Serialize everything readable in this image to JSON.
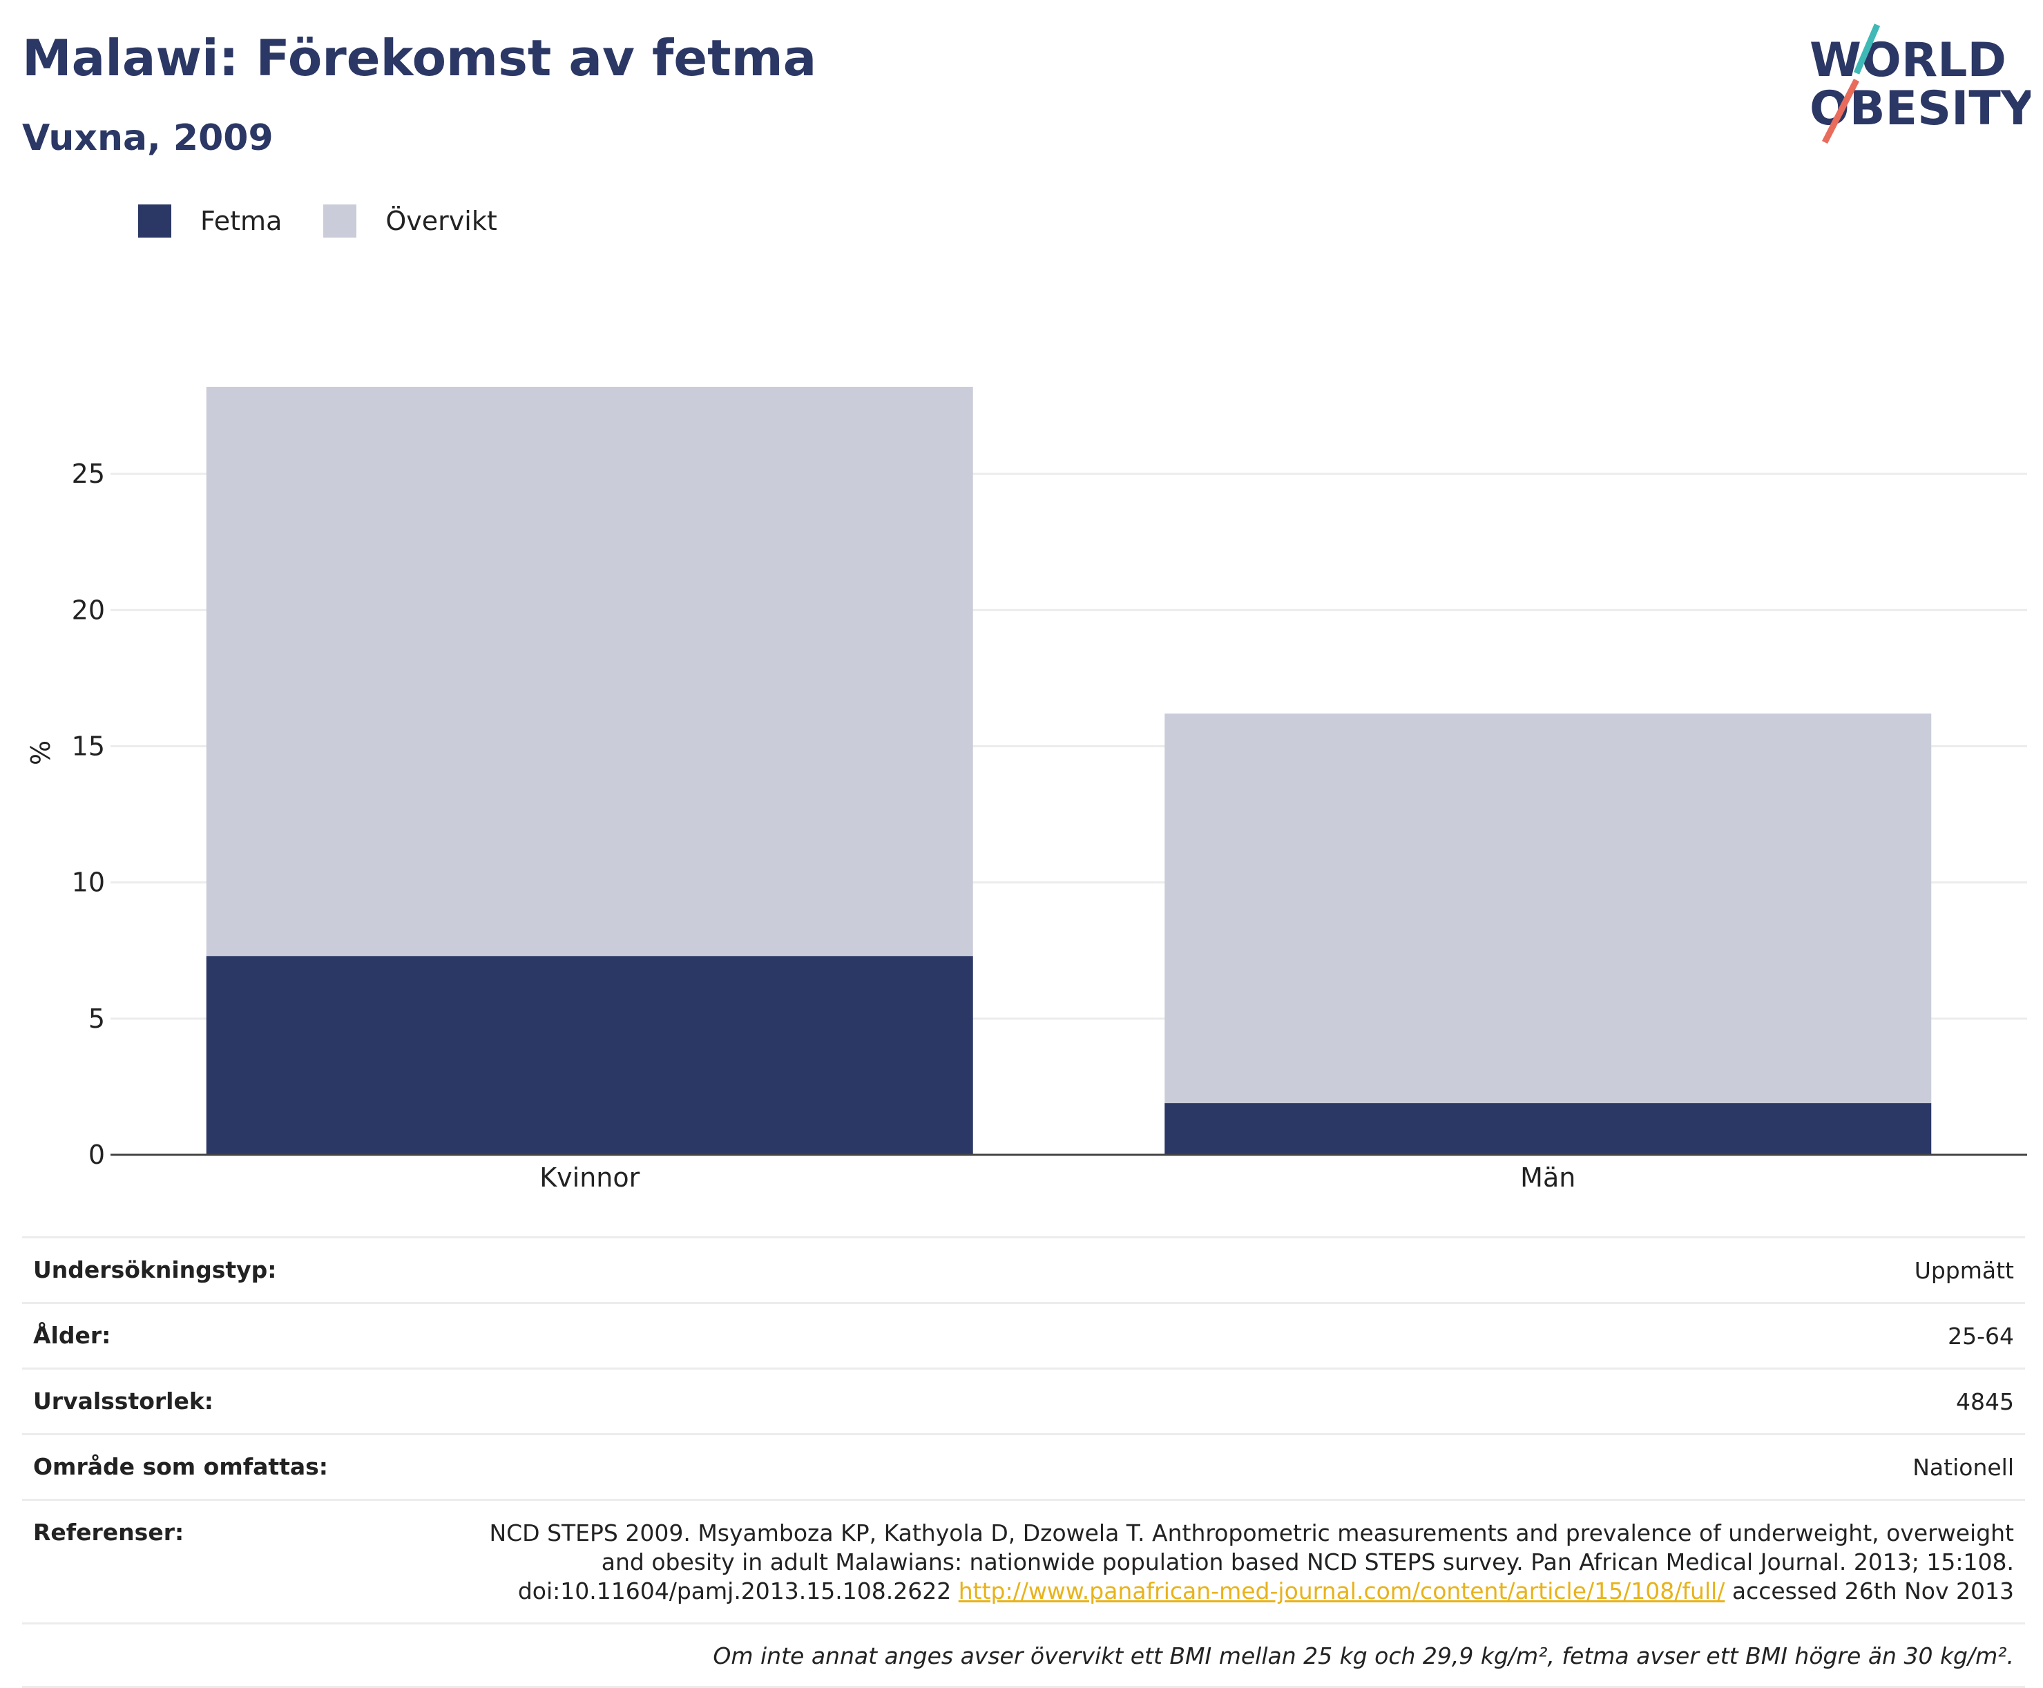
{
  "header": {
    "title": "Malawi: Förekomst av fetma",
    "subtitle": "Vuxna, 2009",
    "logo_line1": "WORLD",
    "logo_line2": "OBESITY"
  },
  "colors": {
    "obesity": "#2b3764",
    "overweight": "#cacdd9",
    "logo_teal": "#3fb9b6",
    "logo_red": "#e96b5b",
    "link": "#e8b21a"
  },
  "chart_data": {
    "type": "bar",
    "stacked": true,
    "categories": [
      "Kvinnor",
      "Män"
    ],
    "series": [
      {
        "name": "Fetma",
        "values": [
          7.3,
          1.9
        ]
      },
      {
        "name": "Övervikt",
        "values": [
          20.9,
          14.3
        ]
      }
    ],
    "ylabel": "%",
    "ylim": [
      0,
      28.2
    ],
    "yticks": [
      0,
      5,
      10,
      15,
      20,
      25
    ],
    "grid": true,
    "legend": "top-left"
  },
  "info": {
    "rows": [
      {
        "key": "Undersökningstyp:",
        "value": "Uppmätt"
      },
      {
        "key": "Ålder:",
        "value": "25-64"
      },
      {
        "key": "Urvalsstorlek:",
        "value": "4845"
      },
      {
        "key": "Område som omfattas:",
        "value": "Nationell"
      }
    ],
    "references": {
      "key": "Referenser:",
      "text_line1": "NCD STEPS 2009. Msyamboza KP, Kathyola D, Dzowela T. Anthropometric measurements and prevalence of underweight, overweight",
      "text_line2": "and obesity in adult Malawians: nationwide population based NCD STEPS survey. Pan African Medical Journal. 2013; 15:108.",
      "text_line3": "doi:10.11604/pamj.2013.15.108.2622",
      "link": "http://www.panafrican-med-journal.com/content/article/15/108/full/",
      "accessed": "accessed 26th Nov 2013"
    },
    "note": "Om inte annat anges avser övervikt ett BMI mellan 25 kg och 29,9 kg/m², fetma avser ett BMI högre än 30 kg/m²."
  }
}
